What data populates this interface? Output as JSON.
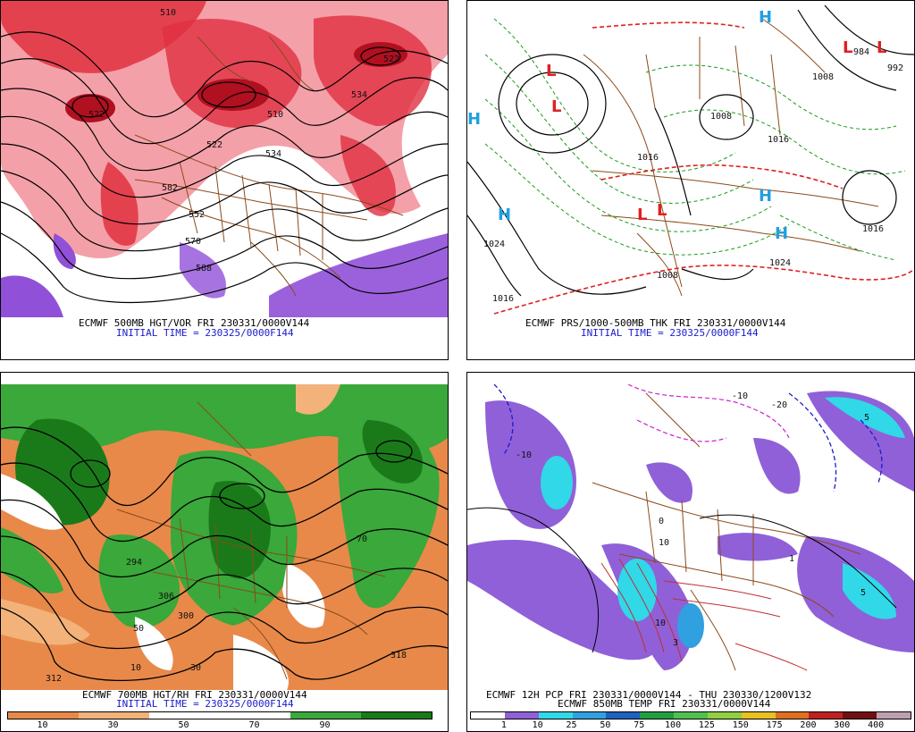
{
  "panels": {
    "tl": {
      "caption1": "ECMWF 500MB HGT/VOR FRI 230331/0000V144",
      "caption2": "INITIAL TIME = 230325/0000F144",
      "contour_labels": [
        "510",
        "522",
        "534",
        "522",
        "534",
        "510",
        "522",
        "552",
        "588",
        "570",
        "582"
      ],
      "colors": {
        "vort_light": "#f4a0a8",
        "vort_mid": "#e03040",
        "vort_dark": "#b01020",
        "negative": "#9050d8"
      }
    },
    "tr": {
      "caption1": "ECMWF PRS/1000-500MB THK FRI 230331/0000V144",
      "caption2": "INITIAL TIME = 230325/0000F144",
      "pressure_labels": [
        "1024",
        "1016",
        "1008",
        "1016",
        "1024",
        "1016",
        "1016",
        "1008",
        "984",
        "992",
        "1008"
      ],
      "centers": [
        {
          "type": "L"
        },
        {
          "type": "L"
        },
        {
          "type": "L"
        },
        {
          "type": "L"
        },
        {
          "type": "L"
        },
        {
          "type": "L"
        },
        {
          "type": "H"
        },
        {
          "type": "H"
        },
        {
          "type": "H"
        },
        {
          "type": "H"
        },
        {
          "type": "H"
        }
      ],
      "colors": {
        "high": "#20a0e0",
        "low": "#e02020",
        "thickness_cold": "#1a9a1a",
        "thickness_warm": "#e02020"
      }
    },
    "bl": {
      "caption1": "ECMWF 700MB HGT/RH FRI 230331/0000V144",
      "caption2": "INITIAL TIME = 230325/0000F144",
      "contour_labels": [
        "312",
        "300",
        "306",
        "294",
        "318",
        "10",
        "50",
        "70",
        "30"
      ],
      "colorbar": {
        "ticks": [
          "10",
          "30",
          "50",
          "70",
          "90"
        ],
        "colors": [
          "#e8894a",
          "#f2b27a",
          "#ffffff",
          "#ffffff",
          "#3aa83a",
          "#1a7a1a"
        ]
      }
    },
    "br": {
      "caption1": "ECMWF 12H PCP FRI 230331/0000V144 - THU 230330/1200V132",
      "caption2": "ECMWF 850MB TEMP FRI 230331/0000V144",
      "temp_labels": [
        "-10",
        "0",
        "10",
        "-20",
        "-10",
        "5",
        "10",
        "3",
        "1",
        "5"
      ],
      "colorbar": {
        "ticks": [
          "1",
          "10",
          "25",
          "50",
          "75",
          "100",
          "125",
          "150",
          "175",
          "200",
          "300",
          "400"
        ],
        "colors": [
          "#ffffff",
          "#9060d8",
          "#30d8e8",
          "#30a0e0",
          "#2060c0",
          "#20a040",
          "#50c050",
          "#90d040",
          "#e8c020",
          "#e07020",
          "#c02020",
          "#701010",
          "#c0a0b0"
        ]
      }
    }
  }
}
